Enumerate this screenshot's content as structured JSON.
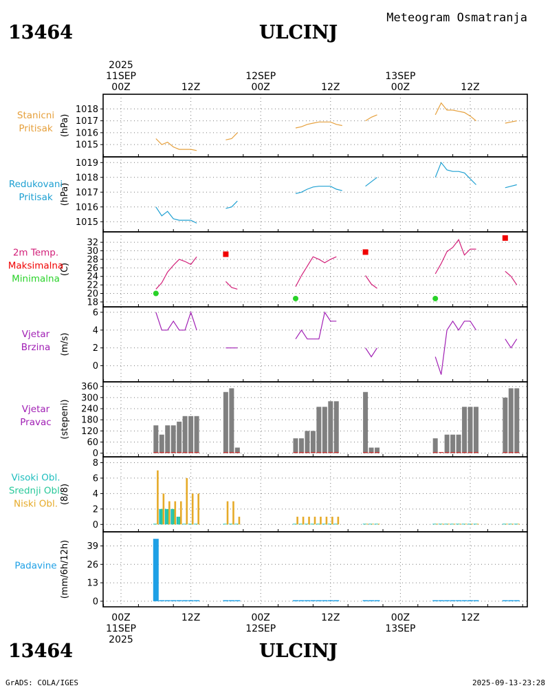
{
  "header": {
    "station_id": "13464",
    "station_name": "ULCINJ",
    "subtitle": "Meteogram Osmatranja",
    "footer_left": "GrADS: COLA/IGES",
    "footer_right": "2025-09-13-23:28"
  },
  "time_axis": {
    "labels": [
      {
        "h": 0,
        "lines": [
          "2025",
          "11SEP",
          "00Z"
        ]
      },
      {
        "h": 12,
        "lines": [
          "12Z"
        ]
      },
      {
        "h": 24,
        "lines": [
          "12SEP",
          "00Z"
        ]
      },
      {
        "h": 36,
        "lines": [
          "12Z"
        ]
      },
      {
        "h": 48,
        "lines": [
          "13SEP",
          "00Z"
        ]
      },
      {
        "h": 60,
        "lines": [
          "12Z"
        ]
      }
    ],
    "bottom_labels": [
      {
        "h": 0,
        "lines": [
          "00Z",
          "11SEP",
          "2025"
        ]
      },
      {
        "h": 12,
        "lines": [
          "12Z"
        ]
      },
      {
        "h": 24,
        "lines": [
          "00Z",
          "12SEP"
        ]
      },
      {
        "h": 36,
        "lines": [
          "12Z"
        ]
      },
      {
        "h": 48,
        "lines": [
          "00Z",
          "13SEP"
        ]
      },
      {
        "h": 60,
        "lines": [
          "12Z"
        ]
      }
    ]
  },
  "colors": {
    "pressure": "#e6a03c",
    "reduced": "#1ea0d2",
    "temperature": "#d21e78",
    "tmax": "#f00000",
    "tmin": "#28d228",
    "wind": "#a01eb4",
    "bars": "#808080",
    "dir_baseline": "#c83232",
    "high_cloud": "#1ebebe",
    "mid_cloud": "#28c89a",
    "low_cloud": "#e6aa28",
    "precip": "#1ea0e6",
    "grid": "#777777"
  },
  "chart_data": [
    {
      "type": "line",
      "panel": "pressure",
      "labels": [
        "Stanicni",
        "Pritisak"
      ],
      "label_colors": [
        "pressure",
        "pressure"
      ],
      "ylabel": "(hPa)",
      "ylim": [
        1014.2,
        1019.0
      ],
      "yticks": [
        1015,
        1016,
        1017,
        1018
      ],
      "series": [
        {
          "name": "Stanicni Pritisak",
          "color": "pressure",
          "segments": [
            [
              [
                6,
                1015.5
              ],
              [
                7,
                1015.0
              ],
              [
                8,
                1015.2
              ],
              [
                9,
                1014.8
              ],
              [
                10,
                1014.6
              ],
              [
                11,
                1014.6
              ],
              [
                12,
                1014.6
              ],
              [
                13,
                1014.5
              ]
            ],
            [
              [
                18,
                1015.4
              ],
              [
                19,
                1015.5
              ],
              [
                20,
                1016.0
              ]
            ],
            [
              [
                30,
                1016.4
              ],
              [
                31,
                1016.5
              ],
              [
                32,
                1016.7
              ],
              [
                33,
                1016.8
              ],
              [
                34,
                1016.9
              ],
              [
                35,
                1016.9
              ],
              [
                36,
                1016.9
              ],
              [
                37,
                1016.7
              ],
              [
                38,
                1016.6
              ]
            ],
            [
              [
                42,
                1017.0
              ],
              [
                43,
                1017.3
              ],
              [
                44,
                1017.5
              ]
            ],
            [
              [
                54,
                1017.5
              ],
              [
                55,
                1018.5
              ],
              [
                56,
                1017.9
              ],
              [
                57,
                1017.9
              ],
              [
                58,
                1017.8
              ],
              [
                59,
                1017.7
              ],
              [
                60,
                1017.4
              ],
              [
                61,
                1017.0
              ]
            ],
            [
              [
                66,
                1016.8
              ],
              [
                67,
                1016.9
              ],
              [
                68,
                1017.0
              ]
            ]
          ]
        }
      ]
    },
    {
      "type": "line",
      "panel": "reduced",
      "labels": [
        "Redukovani",
        "Pritisak"
      ],
      "label_colors": [
        "reduced",
        "reduced"
      ],
      "ylabel": "(hPa)",
      "ylim": [
        1014.5,
        1019.2
      ],
      "yticks": [
        1015,
        1016,
        1017,
        1018,
        1019
      ],
      "series": [
        {
          "name": "Redukovani Pritisak",
          "color": "reduced",
          "segments": [
            [
              [
                6,
                1016.0
              ],
              [
                7,
                1015.4
              ],
              [
                8,
                1015.7
              ],
              [
                9,
                1015.2
              ],
              [
                10,
                1015.1
              ],
              [
                11,
                1015.1
              ],
              [
                12,
                1015.1
              ],
              [
                13,
                1014.9
              ]
            ],
            [
              [
                18,
                1015.9
              ],
              [
                19,
                1016.0
              ],
              [
                20,
                1016.4
              ]
            ],
            [
              [
                30,
                1016.9
              ],
              [
                31,
                1017.0
              ],
              [
                32,
                1017.2
              ],
              [
                33,
                1017.35
              ],
              [
                34,
                1017.4
              ],
              [
                35,
                1017.4
              ],
              [
                36,
                1017.4
              ],
              [
                37,
                1017.2
              ],
              [
                38,
                1017.1
              ]
            ],
            [
              [
                42,
                1017.4
              ],
              [
                43,
                1017.7
              ],
              [
                44,
                1018.0
              ]
            ],
            [
              [
                54,
                1018.0
              ],
              [
                55,
                1019.0
              ],
              [
                56,
                1018.5
              ],
              [
                57,
                1018.4
              ],
              [
                58,
                1018.4
              ],
              [
                59,
                1018.3
              ],
              [
                60,
                1017.9
              ],
              [
                61,
                1017.5
              ]
            ],
            [
              [
                66,
                1017.3
              ],
              [
                67,
                1017.4
              ],
              [
                68,
                1017.5
              ]
            ]
          ]
        }
      ]
    },
    {
      "type": "line",
      "panel": "temperature",
      "labels": [
        "2m Temp.",
        "Maksimalna",
        "Minimalna"
      ],
      "label_colors": [
        "temperature",
        "tmax",
        "tmin"
      ],
      "ylabel": "(C)",
      "ylim": [
        17.5,
        33.8
      ],
      "yticks": [
        18,
        20,
        22,
        24,
        26,
        28,
        30,
        32
      ],
      "series": [
        {
          "name": "2m Temp.",
          "color": "temperature",
          "segments": [
            [
              [
                6,
                21.0
              ],
              [
                7,
                22.5
              ],
              [
                8,
                25.0
              ],
              [
                9,
                26.6
              ],
              [
                10,
                28.0
              ],
              [
                11,
                27.5
              ],
              [
                12,
                26.8
              ],
              [
                13,
                28.6
              ]
            ],
            [
              [
                18,
                22.8
              ],
              [
                19,
                21.4
              ],
              [
                20,
                21.0
              ]
            ],
            [
              [
                30,
                21.6
              ],
              [
                31,
                24.2
              ],
              [
                32,
                26.4
              ],
              [
                33,
                28.6
              ],
              [
                34,
                28.0
              ],
              [
                35,
                27.2
              ],
              [
                36,
                28.0
              ],
              [
                37,
                28.6
              ]
            ],
            [
              [
                42,
                24.2
              ],
              [
                43,
                22.2
              ],
              [
                44,
                21.2
              ]
            ],
            [
              [
                54,
                24.6
              ],
              [
                55,
                27.0
              ],
              [
                56,
                29.8
              ],
              [
                57,
                30.8
              ],
              [
                58,
                32.6
              ],
              [
                59,
                29.0
              ],
              [
                60,
                30.4
              ],
              [
                61,
                30.4
              ]
            ],
            [
              [
                66,
                25.2
              ],
              [
                67,
                24.0
              ],
              [
                68,
                22.0
              ]
            ]
          ]
        }
      ],
      "maxima": [
        [
          18,
          29.2
        ],
        [
          42,
          29.7
        ],
        [
          66,
          33.0
        ]
      ],
      "minima": [
        [
          6,
          20.0
        ],
        [
          30,
          18.8
        ],
        [
          54,
          18.8
        ]
      ]
    },
    {
      "type": "line",
      "panel": "wind_speed",
      "labels": [
        "Vjetar",
        "Brzina"
      ],
      "label_colors": [
        "wind",
        "wind"
      ],
      "ylabel": "(m/s)",
      "ylim": [
        -1.5,
        6.3
      ],
      "yticks": [
        0,
        2,
        4,
        6
      ],
      "series": [
        {
          "name": "Vjetar Brzina",
          "color": "wind",
          "segments": [
            [
              [
                6,
                6
              ],
              [
                7,
                4
              ],
              [
                8,
                4
              ],
              [
                9,
                5
              ],
              [
                10,
                4
              ],
              [
                11,
                4
              ],
              [
                12,
                6
              ],
              [
                13,
                4
              ]
            ],
            [
              [
                18,
                2
              ],
              [
                19,
                2
              ],
              [
                20,
                2
              ]
            ],
            [
              [
                30,
                3
              ],
              [
                31,
                4
              ],
              [
                32,
                3
              ],
              [
                33,
                3
              ],
              [
                34,
                3
              ],
              [
                35,
                6
              ],
              [
                36,
                5
              ],
              [
                37,
                5
              ]
            ],
            [
              [
                42,
                2
              ],
              [
                43,
                1
              ],
              [
                44,
                2
              ]
            ],
            [
              [
                54,
                1
              ],
              [
                55,
                -1
              ],
              [
                56,
                4
              ],
              [
                57,
                5
              ],
              [
                58,
                4
              ],
              [
                59,
                5
              ],
              [
                60,
                5
              ],
              [
                61,
                4
              ]
            ],
            [
              [
                66,
                3
              ],
              [
                67,
                2
              ],
              [
                68,
                3
              ]
            ]
          ]
        }
      ]
    },
    {
      "type": "bar",
      "panel": "wind_direction",
      "labels": [
        "Vjetar",
        "Pravac"
      ],
      "label_colors": [
        "wind",
        "wind"
      ],
      "ylabel": "(stepeni)",
      "ylim": [
        -5,
        370
      ],
      "yticks": [
        0,
        60,
        120,
        180,
        240,
        300,
        360
      ],
      "x": [
        6,
        7,
        8,
        9,
        10,
        11,
        12,
        13,
        18,
        19,
        20,
        30,
        31,
        32,
        33,
        34,
        35,
        36,
        37,
        42,
        43,
        44,
        54,
        55,
        56,
        57,
        58,
        59,
        60,
        61,
        66,
        67,
        68
      ],
      "values": [
        150,
        100,
        150,
        150,
        170,
        200,
        200,
        200,
        330,
        350,
        30,
        80,
        80,
        120,
        120,
        250,
        250,
        280,
        280,
        330,
        30,
        30,
        80,
        0,
        100,
        100,
        100,
        250,
        250,
        250,
        300,
        350,
        350
      ]
    },
    {
      "type": "bar",
      "panel": "clouds",
      "labels": [
        "Visoki Obl.",
        "Srednji Obl.",
        "Niski Obl."
      ],
      "label_colors": [
        "high_cloud",
        "mid_cloud",
        "low_cloud"
      ],
      "ylabel": "(8/8)",
      "ylim": [
        -0.6,
        8.4
      ],
      "yticks": [
        0,
        2,
        4,
        6,
        8
      ],
      "x": [
        6,
        7,
        8,
        9,
        10,
        11,
        12,
        13,
        18,
        19,
        20,
        30,
        31,
        32,
        33,
        34,
        35,
        36,
        37,
        42,
        43,
        44,
        54,
        55,
        56,
        57,
        58,
        59,
        60,
        61,
        66,
        67,
        68
      ],
      "series": [
        {
          "name": "Visoki Obl.",
          "color": "high_cloud",
          "values": [
            0,
            2,
            2,
            2,
            1,
            0,
            0,
            0,
            0,
            0,
            0,
            0,
            0,
            0,
            0,
            0,
            0,
            0,
            0,
            0,
            0,
            0,
            0,
            0,
            0,
            0,
            0,
            0,
            0,
            0,
            0,
            0,
            0
          ]
        },
        {
          "name": "Srednji Obl.",
          "color": "mid_cloud",
          "values": [
            0,
            2,
            2,
            2,
            1,
            0,
            0,
            0,
            0,
            0,
            0,
            0,
            0,
            0,
            0,
            0,
            0,
            0,
            0,
            0,
            0,
            0,
            0,
            0,
            0,
            0,
            0,
            0,
            0,
            0,
            0,
            0,
            0
          ]
        },
        {
          "name": "Niski Obl.",
          "color": "low_cloud",
          "values": [
            7,
            4,
            3,
            3,
            3,
            6,
            4,
            4,
            3,
            3,
            1,
            1,
            1,
            1,
            1,
            1,
            1,
            1,
            1,
            0,
            0,
            0,
            0,
            0,
            0,
            0,
            0,
            0,
            0,
            0,
            0,
            0,
            0
          ]
        }
      ]
    },
    {
      "type": "bar",
      "panel": "precipitation",
      "labels": [
        "Padavine"
      ],
      "label_colors": [
        "precip"
      ],
      "ylabel": "(mm/6h/12h)",
      "ylim": [
        -2,
        47
      ],
      "yticks": [
        0,
        13,
        26,
        39
      ],
      "x": [
        6,
        7,
        8,
        9,
        10,
        11,
        12,
        13,
        18,
        19,
        20,
        30,
        31,
        32,
        33,
        34,
        35,
        36,
        37,
        42,
        43,
        44,
        54,
        55,
        56,
        57,
        58,
        59,
        60,
        61,
        66,
        67,
        68
      ],
      "values": [
        44,
        0,
        0,
        0,
        0,
        0,
        0,
        0,
        0,
        0,
        0,
        0,
        0,
        0,
        0,
        0,
        0,
        0,
        0,
        0,
        0,
        0,
        0,
        0,
        0,
        0,
        0,
        0,
        0,
        0,
        0,
        0,
        0
      ]
    }
  ]
}
